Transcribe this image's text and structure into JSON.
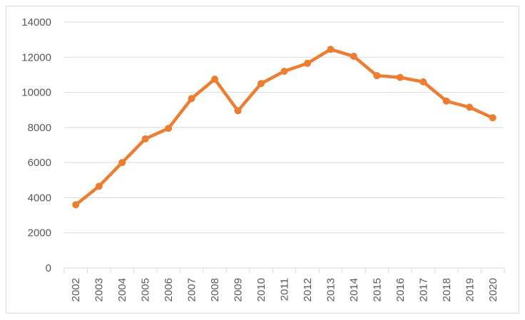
{
  "chart_data": {
    "type": "line",
    "categories": [
      "2002",
      "2003",
      "2004",
      "2005",
      "2006",
      "2007",
      "2008",
      "2009",
      "2010",
      "2011",
      "2012",
      "2013",
      "2014",
      "2015",
      "2016",
      "2017",
      "2018",
      "2019",
      "2020"
    ],
    "series": [
      {
        "values": [
          3600,
          4650,
          6000,
          7350,
          7950,
          9650,
          10750,
          8950,
          10500,
          11200,
          11650,
          12450,
          12050,
          10950,
          10850,
          10600,
          9500,
          9150,
          8550
        ],
        "color": "#ed7d31"
      }
    ],
    "y_ticks": [
      "0",
      "2000",
      "4000",
      "6000",
      "8000",
      "10000",
      "12000",
      "14000"
    ],
    "ylim": [
      0,
      14000
    ],
    "grid": true,
    "legend": "none",
    "title": "",
    "xlabel": "",
    "ylabel": "",
    "colors": {
      "gridline": "#d9d9d9",
      "tick_text": "#595959"
    }
  }
}
